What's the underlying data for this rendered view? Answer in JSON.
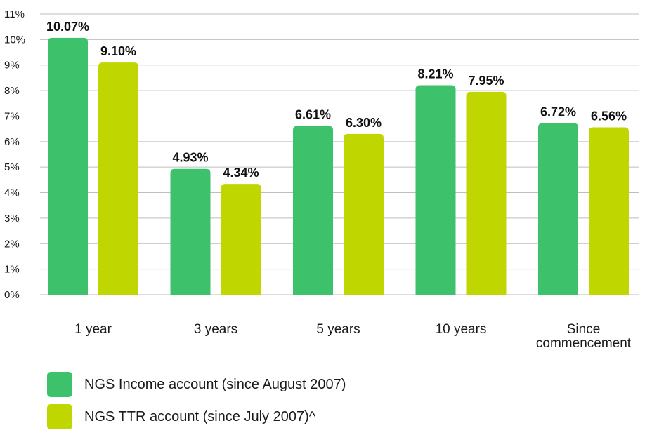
{
  "chart_data": {
    "type": "bar",
    "categories": [
      "1 year",
      "3 years",
      "5 years",
      "10 years",
      "Since commencement"
    ],
    "category_lines": [
      [
        "1 year"
      ],
      [
        "3 years"
      ],
      [
        "5 years"
      ],
      [
        "10 years"
      ],
      [
        "Since",
        "commencement"
      ]
    ],
    "series": [
      {
        "name": "NGS Income account (since August 2007)",
        "color": "#3dc26b",
        "values": [
          10.07,
          4.93,
          6.61,
          8.21,
          6.72
        ],
        "labels": [
          "10.07%",
          "4.93%",
          "6.61%",
          "8.21%",
          "6.72%"
        ]
      },
      {
        "name": "NGS TTR account (since July 2007)^",
        "color": "#bfd600",
        "values": [
          9.1,
          4.34,
          6.3,
          7.95,
          6.56
        ],
        "labels": [
          "9.10%",
          "4.34%",
          "6.30%",
          "7.95%",
          "6.56%"
        ]
      }
    ],
    "y_ticks": [
      "0%",
      "1%",
      "2%",
      "3%",
      "4%",
      "5%",
      "6%",
      "7%",
      "8%",
      "9%",
      "10%",
      "11%"
    ],
    "ylim": [
      0,
      11
    ],
    "grid": true,
    "legend_position": "bottom-left",
    "title": "",
    "xlabel": "",
    "ylabel": ""
  },
  "legend": {
    "items": [
      {
        "label": "NGS Income account (since August 2007)",
        "color": "#3dc26b"
      },
      {
        "label": "NGS TTR account (since July 2007)^",
        "color": "#bfd600"
      }
    ]
  }
}
